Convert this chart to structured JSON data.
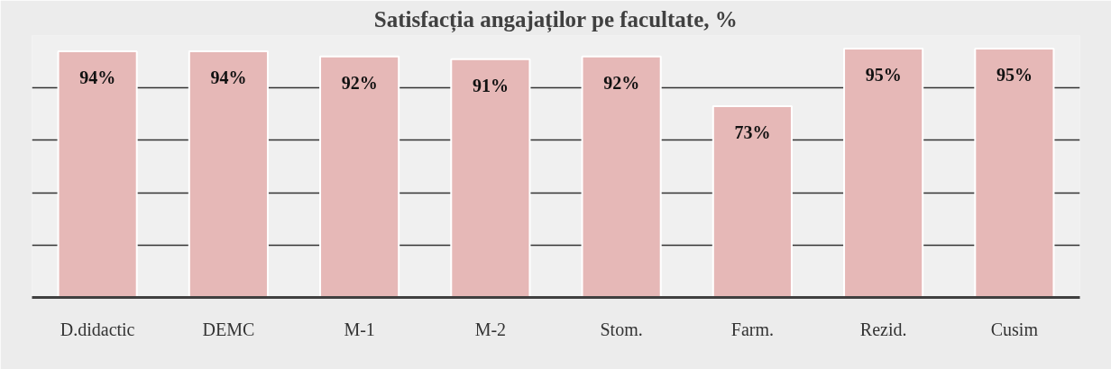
{
  "chart_data": {
    "type": "bar",
    "title": "Satisfacția angajaților pe facultate, %",
    "categories": [
      "D.didactic",
      "DEMC",
      "M-1",
      "M-2",
      "Stom.",
      "Farm.",
      "Rezid.",
      "Cusim"
    ],
    "values": [
      94,
      94,
      92,
      91,
      92,
      73,
      95,
      95
    ],
    "value_labels": [
      "94%",
      "94%",
      "92%",
      "91%",
      "92%",
      "73%",
      "95%",
      "95%"
    ],
    "color": "#e6b8b7",
    "ylim": [
      0,
      100
    ],
    "yticks": [
      {
        "value": 0,
        "label": null
      },
      {
        "value": 20,
        "label": null
      },
      {
        "value": 40,
        "label": null
      },
      {
        "value": 60,
        "label": null
      },
      {
        "value": 80,
        "label": null
      }
    ],
    "grid": "y",
    "tick_labels": "x"
  }
}
